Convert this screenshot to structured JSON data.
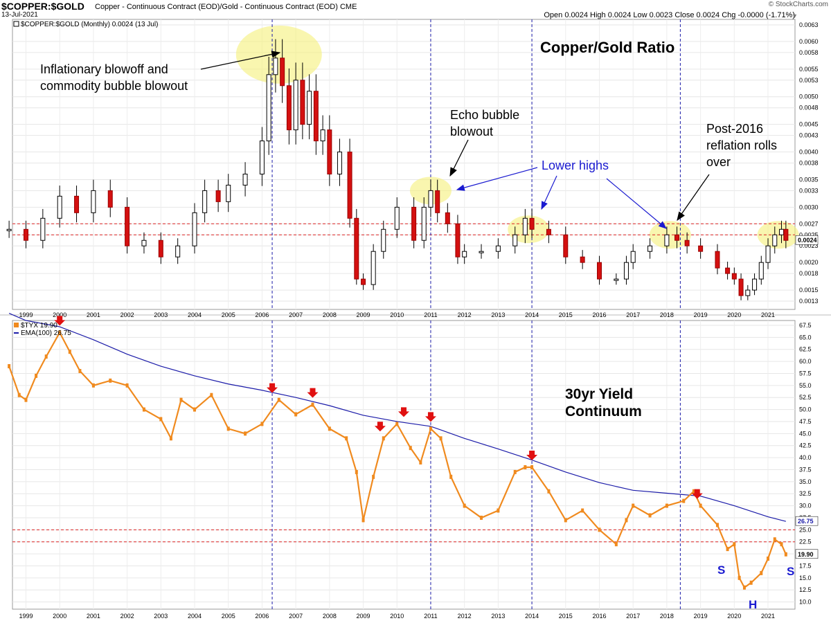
{
  "header": {
    "symbol": "$COPPER:$GOLD",
    "description": "Copper - Continuous Contract (EOD)/Gold - Continuous Contract (EOD) CME",
    "date": "13-Jul-2021",
    "ohlc": "Open 0.0024  High 0.0024  Low 0.0023  Close 0.0024  Chg -0.0000 (-1.71%)",
    "watermark": "© StockCharts.com"
  },
  "chart_data": [
    {
      "type": "candlestick",
      "title": "Copper/Gold Ratio",
      "legend": "$COPPER:$GOLD (Monthly) 0.0024 (13 Jul)",
      "last_value_label": "0.0024",
      "x_ticks": [
        "1999",
        "2000",
        "2001",
        "2002",
        "2003",
        "2004",
        "2005",
        "2006",
        "2007",
        "2008",
        "2009",
        "2010",
        "2011",
        "2012",
        "2013",
        "2014",
        "2015",
        "2016",
        "2017",
        "2018",
        "2019",
        "2020",
        "2021"
      ],
      "y_ticks": [
        "0.0013",
        "0.0015",
        "0.0018",
        "0.0020",
        "0.0023",
        "0.0025",
        "0.0027",
        "0.0030",
        "0.0033",
        "0.0035",
        "0.0038",
        "0.0040",
        "0.0043",
        "0.0045",
        "0.0048",
        "0.0050",
        "0.0053",
        "0.0055",
        "0.0058",
        "0.0060",
        "0.0063"
      ],
      "ylim": [
        0.00115,
        0.0064
      ],
      "x": [
        1998.5,
        1999.0,
        1999.5,
        2000.0,
        2000.5,
        2001.0,
        2001.5,
        2002.0,
        2002.5,
        2003.0,
        2003.5,
        2004.0,
        2004.3,
        2004.7,
        2005.0,
        2005.5,
        2006.0,
        2006.2,
        2006.4,
        2006.6,
        2006.8,
        2007.0,
        2007.2,
        2007.4,
        2007.6,
        2007.8,
        2008.0,
        2008.3,
        2008.6,
        2008.8,
        2009.0,
        2009.3,
        2009.6,
        2010.0,
        2010.5,
        2010.8,
        2011.0,
        2011.2,
        2011.5,
        2011.8,
        2012.0,
        2012.5,
        2013.0,
        2013.5,
        2013.8,
        2014.0,
        2014.5,
        2015.0,
        2015.5,
        2016.0,
        2016.5,
        2016.8,
        2017.0,
        2017.5,
        2018.0,
        2018.3,
        2018.6,
        2019.0,
        2019.5,
        2019.8,
        2020.0,
        2020.2,
        2020.4,
        2020.6,
        2020.8,
        2021.0,
        2021.2,
        2021.4,
        2021.53
      ],
      "values": [
        0.0026,
        0.0024,
        0.0028,
        0.0032,
        0.0029,
        0.0033,
        0.003,
        0.0023,
        0.0024,
        0.0021,
        0.0023,
        0.0029,
        0.0033,
        0.0031,
        0.0034,
        0.0036,
        0.0042,
        0.0054,
        0.0057,
        0.0052,
        0.0044,
        0.0053,
        0.0045,
        0.0051,
        0.0042,
        0.0044,
        0.0036,
        0.004,
        0.0028,
        0.0017,
        0.0016,
        0.0022,
        0.0026,
        0.003,
        0.0024,
        0.003,
        0.0033,
        0.0029,
        0.0027,
        0.0021,
        0.0022,
        0.0022,
        0.0023,
        0.0025,
        0.0028,
        0.0026,
        0.0025,
        0.0021,
        0.002,
        0.0017,
        0.0017,
        0.002,
        0.0022,
        0.0023,
        0.0025,
        0.0024,
        0.0023,
        0.0022,
        0.0019,
        0.0018,
        0.0017,
        0.0014,
        0.0015,
        0.0017,
        0.002,
        0.0023,
        0.0025,
        0.0026,
        0.0024
      ],
      "h_lines": [
        0.0027,
        0.0025
      ],
      "annotations": [
        "Inflationary blowoff and",
        "commodity bubble blowout",
        "Echo bubble",
        "blowout",
        "Lower highs",
        "Post-2016",
        "reflation rolls",
        "over"
      ],
      "highlight_x": [
        2006.5,
        2011.0,
        2013.9,
        2018.1,
        2021.3
      ]
    },
    {
      "type": "line",
      "title_lines": [
        "30yr Yield",
        "Continuum"
      ],
      "legend": [
        "$TYX 19.90",
        "EMA(100) 26.75"
      ],
      "last_value_labels": [
        "26.75",
        "19.90"
      ],
      "x_ticks": [
        "1999",
        "2000",
        "2001",
        "2002",
        "2003",
        "2004",
        "2005",
        "2006",
        "2007",
        "2008",
        "2009",
        "2010",
        "2011",
        "2012",
        "2013",
        "2014",
        "2015",
        "2016",
        "2017",
        "2018",
        "2019",
        "2020",
        "2021"
      ],
      "y_ticks": [
        "10.0",
        "12.5",
        "15.0",
        "17.5",
        "20.0",
        "22.5",
        "25.0",
        "27.5",
        "30.0",
        "32.5",
        "35.0",
        "37.5",
        "40.0",
        "42.5",
        "45.0",
        "47.5",
        "50.0",
        "52.5",
        "55.0",
        "57.5",
        "60.0",
        "62.5",
        "65.0",
        "67.5"
      ],
      "ylim": [
        8.5,
        68.5
      ],
      "series": [
        {
          "name": "$TYX",
          "x": [
            1998.5,
            1998.8,
            1999.0,
            1999.3,
            1999.6,
            2000.0,
            2000.3,
            2000.6,
            2001.0,
            2001.5,
            2002.0,
            2002.5,
            2003.0,
            2003.3,
            2003.6,
            2004.0,
            2004.5,
            2005.0,
            2005.5,
            2006.0,
            2006.5,
            2007.0,
            2007.5,
            2008.0,
            2008.5,
            2008.8,
            2009.0,
            2009.3,
            2009.6,
            2010.0,
            2010.4,
            2010.7,
            2011.0,
            2011.3,
            2011.6,
            2012.0,
            2012.5,
            2013.0,
            2013.5,
            2013.8,
            2014.0,
            2014.5,
            2015.0,
            2015.5,
            2016.0,
            2016.5,
            2016.8,
            2017.0,
            2017.5,
            2018.0,
            2018.5,
            2018.8,
            2019.0,
            2019.5,
            2019.8,
            2020.0,
            2020.15,
            2020.3,
            2020.5,
            2020.8,
            2021.0,
            2021.2,
            2021.4,
            2021.53
          ],
          "values": [
            59.0,
            53.0,
            52.0,
            57.0,
            61.0,
            66.0,
            62.0,
            58.0,
            55.0,
            56.0,
            55.0,
            50.0,
            48.0,
            44.0,
            52.0,
            50.0,
            53.0,
            46.0,
            45.0,
            47.0,
            52.0,
            49.0,
            51.0,
            46.0,
            44.0,
            37.0,
            27.0,
            36.0,
            44.0,
            47.0,
            42.0,
            39.0,
            46.0,
            44.0,
            36.0,
            30.0,
            27.5,
            29.0,
            37.0,
            38.0,
            38.0,
            33.0,
            27.0,
            29.0,
            25.0,
            22.0,
            27.0,
            30.0,
            28.0,
            30.0,
            31.0,
            33.0,
            30.0,
            26.0,
            21.0,
            22.0,
            15.0,
            13.0,
            14.0,
            16.0,
            19.0,
            23.0,
            22.0,
            19.9
          ]
        },
        {
          "name": "EMA(100)",
          "x": [
            1998.5,
            1999.0,
            2000.0,
            2001.0,
            2002.0,
            2003.0,
            2004.0,
            2005.0,
            2006.0,
            2007.0,
            2008.0,
            2009.0,
            2010.0,
            2011.0,
            2012.0,
            2013.0,
            2014.0,
            2015.0,
            2016.0,
            2017.0,
            2018.0,
            2019.0,
            2020.0,
            2021.0,
            2021.53
          ],
          "values": [
            70.0,
            68.5,
            67.2,
            64.5,
            61.5,
            59.0,
            57.0,
            55.3,
            54.0,
            52.5,
            50.8,
            48.8,
            47.5,
            46.5,
            44.0,
            41.8,
            39.5,
            37.0,
            34.8,
            33.2,
            32.6,
            32.0,
            30.0,
            27.7,
            26.75
          ]
        }
      ],
      "h_lines": [
        25.0,
        22.5
      ],
      "annotations": [
        "S",
        "H",
        "S"
      ],
      "red_markers_x": [
        2000.0,
        2006.3,
        2007.5,
        2009.5,
        2010.2,
        2011.0,
        2014.0,
        2018.9
      ]
    }
  ],
  "vertical_markers_x": [
    2006.3,
    2011.0,
    2014.0,
    2018.4
  ]
}
